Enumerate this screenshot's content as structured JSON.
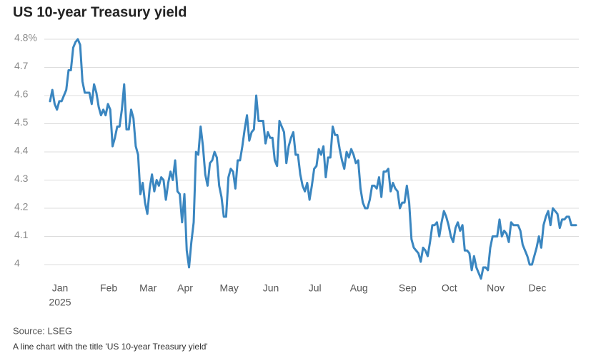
{
  "chart_data": {
    "type": "line",
    "title": "US 10-year Treasury yield",
    "source": "Source: LSEG",
    "caption": "A line chart with the title 'US 10-year Treasury yield'",
    "series": [
      {
        "name": "US 10-year Treasury yield",
        "color": "#3a86c0",
        "values": [
          4.58,
          4.62,
          4.57,
          4.55,
          4.58,
          4.58,
          4.6,
          4.62,
          4.69,
          4.69,
          4.77,
          4.79,
          4.8,
          4.78,
          4.65,
          4.61,
          4.61,
          4.61,
          4.57,
          4.64,
          4.61,
          4.56,
          4.53,
          4.55,
          4.53,
          4.57,
          4.55,
          4.42,
          4.45,
          4.49,
          4.49,
          4.55,
          4.64,
          4.48,
          4.48,
          4.55,
          4.52,
          4.42,
          4.39,
          4.25,
          4.29,
          4.22,
          4.18,
          4.27,
          4.32,
          4.26,
          4.3,
          4.28,
          4.31,
          4.3,
          4.23,
          4.29,
          4.33,
          4.3,
          4.37,
          4.26,
          4.25,
          4.15,
          4.25,
          4.05,
          3.99,
          4.08,
          4.15,
          4.4,
          4.39,
          4.49,
          4.42,
          4.32,
          4.28,
          4.36,
          4.37,
          4.4,
          4.38,
          4.28,
          4.24,
          4.17,
          4.17,
          4.31,
          4.34,
          4.33,
          4.27,
          4.37,
          4.37,
          4.42,
          4.48,
          4.53,
          4.44,
          4.47,
          4.48,
          4.6,
          4.51,
          4.51,
          4.51,
          4.43,
          4.47,
          4.45,
          4.45,
          4.37,
          4.35,
          4.51,
          4.49,
          4.47,
          4.36,
          4.42,
          4.45,
          4.47,
          4.39,
          4.39,
          4.32,
          4.28,
          4.26,
          4.29,
          4.23,
          4.28,
          4.34,
          4.35,
          4.41,
          4.39,
          4.42,
          4.31,
          4.38,
          4.38,
          4.49,
          4.46,
          4.46,
          4.41,
          4.37,
          4.34,
          4.4,
          4.38,
          4.41,
          4.39,
          4.36,
          4.37,
          4.27,
          4.22,
          4.2,
          4.2,
          4.23,
          4.28,
          4.28,
          4.27,
          4.31,
          4.24,
          4.33,
          4.33,
          4.34,
          4.26,
          4.29,
          4.27,
          4.26,
          4.2,
          4.22,
          4.22,
          4.28,
          4.22,
          4.09,
          4.06,
          4.05,
          4.04,
          4.01,
          4.06,
          4.05,
          4.03,
          4.08,
          4.14,
          4.14,
          4.15,
          4.1,
          4.15,
          4.19,
          4.17,
          4.14,
          4.1,
          4.08,
          4.13,
          4.15,
          4.12,
          4.14,
          4.05,
          4.05,
          4.04,
          3.98,
          4.03,
          3.99,
          3.97,
          3.95,
          3.99,
          3.99,
          3.98,
          4.06,
          4.1,
          4.1,
          4.1,
          4.16,
          4.1,
          4.12,
          4.11,
          4.08,
          4.15,
          4.14,
          4.14,
          4.14,
          4.12,
          4.07,
          4.05,
          4.03,
          4.0,
          4.0,
          4.03,
          4.06,
          4.1,
          4.06,
          4.14,
          4.17,
          4.19,
          4.14,
          4.2,
          4.19,
          4.18,
          4.13,
          4.16,
          4.16,
          4.17,
          4.17,
          4.14,
          4.14,
          4.14
        ]
      }
    ],
    "xlim": [
      0,
      227
    ],
    "xticks": [
      {
        "value": 0,
        "label": "Jan"
      },
      {
        "value": 21,
        "label": "Feb"
      },
      {
        "value": 38,
        "label": "Mar"
      },
      {
        "value": 54,
        "label": "Apr"
      },
      {
        "value": 73,
        "label": "May"
      },
      {
        "value": 91,
        "label": "Jun"
      },
      {
        "value": 110,
        "label": "Jul"
      },
      {
        "value": 129,
        "label": "Aug"
      },
      {
        "value": 150,
        "label": "Sep"
      },
      {
        "value": 168,
        "label": "Oct"
      },
      {
        "value": 188,
        "label": "Nov"
      },
      {
        "value": 206,
        "label": "Dec"
      }
    ],
    "xtick_year": "2025",
    "ylim": [
      3.95,
      4.8
    ],
    "yticks": [
      {
        "value": 4.8,
        "label": "4.8%"
      },
      4.7,
      4.6,
      4.5,
      4.4,
      4.3,
      4.2,
      4.1,
      4
    ],
    "grid": true
  }
}
